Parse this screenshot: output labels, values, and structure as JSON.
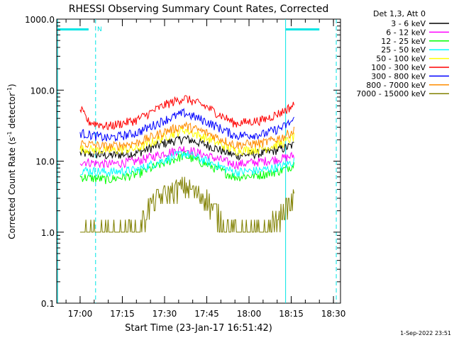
{
  "chart_data": {
    "type": "line",
    "title": "RHESSI Observing Summary Count Rates, Corrected",
    "xlabel": "Start Time (23-Jan-17 16:51:42)",
    "ylabel_main": "Corrected Count Rate (s",
    "ylabel_sup1": "-1",
    "ylabel_mid": " detector",
    "ylabel_sup2": "-1",
    "ylabel_end": ")",
    "y_scale": "log",
    "ylim": [
      0.1,
      1000
    ],
    "xlim": [
      "16:51:42",
      "18:32:30"
    ],
    "x_ticks": [
      "17:00",
      "17:15",
      "17:30",
      "17:45",
      "18:00",
      "18:15",
      "18:30"
    ],
    "y_ticks": [
      "0.1",
      "1.0",
      "10.0",
      "100.0",
      "1000.0"
    ],
    "legend_header": "Det 1,3, Att 0",
    "legend_position": "top-right, outside plot",
    "timestamp": "1-Sep-2022 23:51",
    "annotations": {
      "night_label": "N",
      "night_bars": [
        {
          "start": "16:52:00",
          "end": "17:03:00"
        },
        {
          "start": "18:13:00",
          "end": "18:25:00"
        }
      ],
      "dashed_markers": [
        "17:05:30",
        "18:31:00"
      ],
      "solid_markers": [
        "16:52:00",
        "18:13:00"
      ]
    },
    "series": [
      {
        "name": "3 - 6 keV",
        "color": "#000000",
        "x": [
          "17:00",
          "17:10",
          "17:20",
          "17:30",
          "17:37",
          "17:45",
          "17:55",
          "18:05",
          "18:12",
          "18:16"
        ],
        "y": [
          13,
          12,
          13,
          18,
          21,
          17,
          12,
          13,
          15,
          17
        ]
      },
      {
        "name": "6 - 12 keV",
        "color": "#ff00ff",
        "x": [
          "17:00",
          "17:10",
          "17:20",
          "17:30",
          "17:37",
          "17:45",
          "17:55",
          "18:05",
          "18:12",
          "18:16"
        ],
        "y": [
          10,
          9,
          10,
          13,
          15,
          12,
          9,
          10,
          11,
          12
        ]
      },
      {
        "name": "12 - 25 keV",
        "color": "#00ff00",
        "x": [
          "17:00",
          "17:10",
          "17:20",
          "17:30",
          "17:37",
          "17:45",
          "17:55",
          "18:05",
          "18:12",
          "18:16"
        ],
        "y": [
          6,
          5.5,
          6.5,
          9.5,
          12,
          9,
          6,
          6.5,
          7.5,
          9
        ]
      },
      {
        "name": "25 - 50 keV",
        "color": "#00ffff",
        "x": [
          "17:00",
          "17:10",
          "17:20",
          "17:30",
          "17:37",
          "17:45",
          "17:55",
          "18:05",
          "18:12",
          "18:16"
        ],
        "y": [
          7.5,
          7,
          7.5,
          10.5,
          13,
          10,
          7,
          7.5,
          8.5,
          10
        ]
      },
      {
        "name": "50 - 100 keV",
        "color": "#ffff00",
        "x": [
          "17:00",
          "17:10",
          "17:20",
          "17:30",
          "17:37",
          "17:45",
          "17:55",
          "18:05",
          "18:12",
          "18:16"
        ],
        "y": [
          15,
          14,
          15,
          22,
          28,
          21,
          14,
          15,
          18,
          22
        ]
      },
      {
        "name": "100 - 300 keV",
        "color": "#ff0000",
        "x": [
          "17:00",
          "17:03",
          "17:10",
          "17:20",
          "17:30",
          "17:37",
          "17:45",
          "17:55",
          "18:05",
          "18:12",
          "18:16"
        ],
        "y": [
          55,
          36,
          31,
          38,
          62,
          78,
          58,
          34,
          38,
          50,
          62
        ]
      },
      {
        "name": "300 - 800 keV",
        "color": "#0000ff",
        "x": [
          "17:00",
          "17:10",
          "17:20",
          "17:30",
          "17:37",
          "17:45",
          "17:55",
          "18:05",
          "18:12",
          "18:16"
        ],
        "y": [
          25,
          21,
          25,
          38,
          48,
          36,
          23,
          24,
          30,
          38
        ]
      },
      {
        "name": "800 - 7000 keV",
        "color": "#ff8c00",
        "x": [
          "17:00",
          "17:10",
          "17:20",
          "17:30",
          "17:37",
          "17:45",
          "17:55",
          "18:05",
          "18:12",
          "18:16"
        ],
        "y": [
          18,
          16,
          18,
          26,
          32,
          25,
          17,
          18,
          22,
          27
        ]
      },
      {
        "name": "7000 - 15000 keV",
        "color": "#808000",
        "x": [
          "17:00",
          "17:10",
          "17:20",
          "17:25",
          "17:30",
          "17:37",
          "17:45",
          "17:50",
          "17:55",
          "18:05",
          "18:10",
          "18:16"
        ],
        "y": [
          1,
          1,
          1,
          2.5,
          3.5,
          4.5,
          3,
          1.5,
          1,
          1,
          1.5,
          3
        ]
      }
    ]
  }
}
